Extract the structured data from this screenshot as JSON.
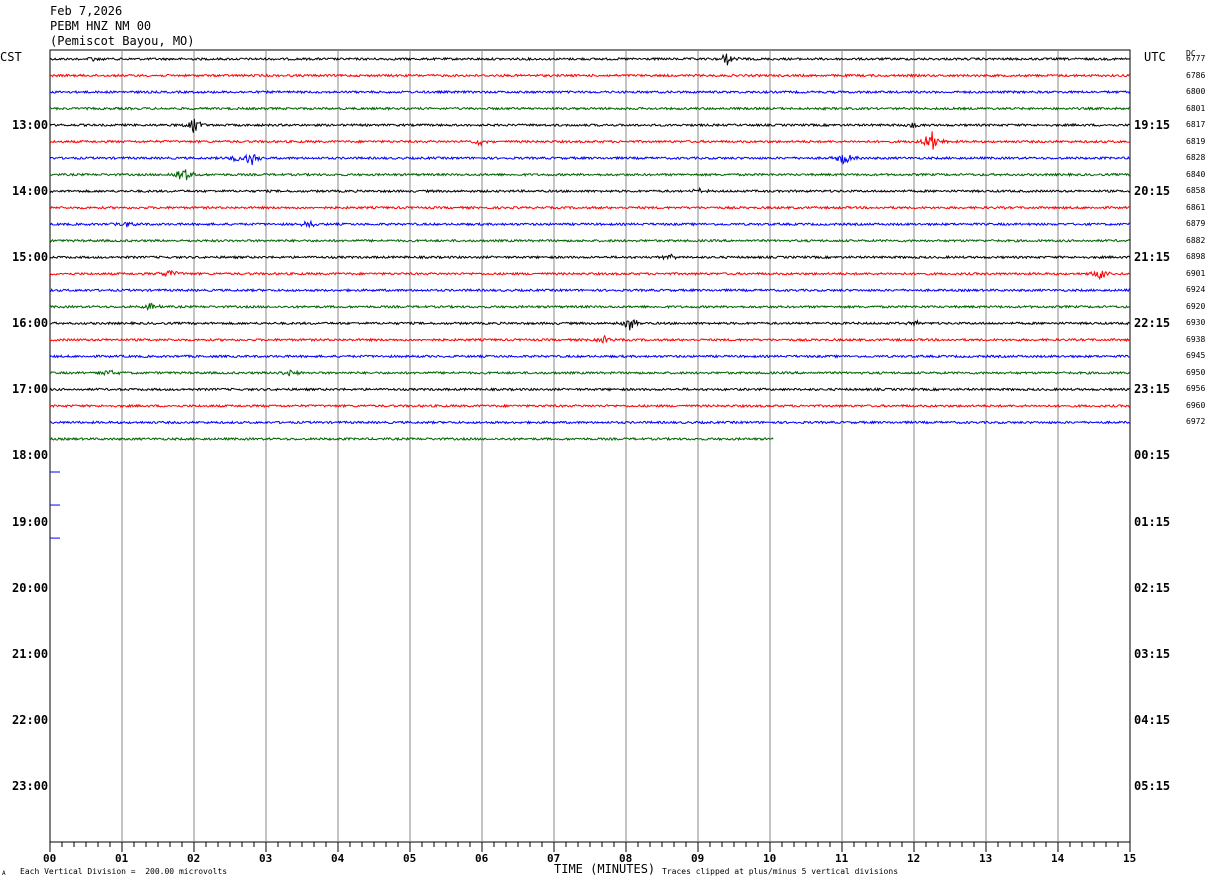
{
  "header": {
    "date": "Feb 7,2026",
    "station": "PEBM HNZ NM 00",
    "location": "(Pemiscot Bayou, MO)"
  },
  "left_zone": "CST",
  "right_zone": "UTC",
  "dc_label": "DC",
  "footer": {
    "scale": "Each Vertical Division =  200.00 microvolts",
    "clip": "Traces clipped at plus/minus 5 vertical divisions",
    "mark": "A"
  },
  "chart_data": {
    "type": "line",
    "title": "",
    "xlabel": "TIME (MINUTES)",
    "ylabel": "",
    "xlim": [
      0,
      15
    ],
    "x_ticks": [
      "00",
      "01",
      "02",
      "03",
      "04",
      "05",
      "06",
      "07",
      "08",
      "09",
      "10",
      "11",
      "12",
      "13",
      "14",
      "15"
    ],
    "grid": true,
    "minutes_per_line": 15,
    "trace_colors": [
      "#000000",
      "#ff0000",
      "#0000ff",
      "#006400"
    ],
    "left_hour_labels": [
      "13:00",
      "14:00",
      "15:00",
      "16:00",
      "17:00",
      "18:00",
      "19:00",
      "20:00",
      "21:00",
      "22:00",
      "23:00"
    ],
    "right_hour_labels": [
      "19:15",
      "20:15",
      "21:15",
      "22:15",
      "23:15",
      "00:15",
      "01:15",
      "02:15",
      "03:15",
      "04:15",
      "05:15"
    ],
    "dc_values": [
      "6777",
      "6786",
      "6800",
      "6801",
      "6817",
      "6819",
      "6828",
      "6840",
      "6858",
      "6861",
      "6879",
      "6882",
      "6898",
      "6901",
      "6924",
      "6920",
      "6930",
      "6938",
      "6945",
      "6950",
      "6956",
      "6960",
      "6972"
    ],
    "completed_lines": 23,
    "last_trace_end_minute": 10.05,
    "events": [
      {
        "line": 0,
        "minute": 9.4,
        "amp": 7
      },
      {
        "line": 0,
        "minute": 0.6,
        "amp": 3
      },
      {
        "line": 4,
        "minute": 2.0,
        "amp": 8
      },
      {
        "line": 4,
        "minute": 12.0,
        "amp": 3
      },
      {
        "line": 5,
        "minute": 12.25,
        "amp": 14
      },
      {
        "line": 5,
        "minute": 5.95,
        "amp": 4
      },
      {
        "line": 6,
        "minute": 2.8,
        "amp": 9
      },
      {
        "line": 6,
        "minute": 2.6,
        "amp": 5
      },
      {
        "line": 6,
        "minute": 11.05,
        "amp": 8
      },
      {
        "line": 7,
        "minute": 1.85,
        "amp": 12
      },
      {
        "line": 8,
        "minute": 9.0,
        "amp": 3
      },
      {
        "line": 10,
        "minute": 1.05,
        "amp": 4
      },
      {
        "line": 10,
        "minute": 3.6,
        "amp": 4
      },
      {
        "line": 12,
        "minute": 8.6,
        "amp": 3
      },
      {
        "line": 13,
        "minute": 1.65,
        "amp": 6
      },
      {
        "line": 13,
        "minute": 14.6,
        "amp": 6
      },
      {
        "line": 15,
        "minute": 1.4,
        "amp": 4
      },
      {
        "line": 16,
        "minute": 8.05,
        "amp": 9
      },
      {
        "line": 16,
        "minute": 12.0,
        "amp": 3
      },
      {
        "line": 17,
        "minute": 7.7,
        "amp": 4
      },
      {
        "line": 19,
        "minute": 0.8,
        "amp": 4
      },
      {
        "line": 19,
        "minute": 3.3,
        "amp": 6
      }
    ]
  }
}
